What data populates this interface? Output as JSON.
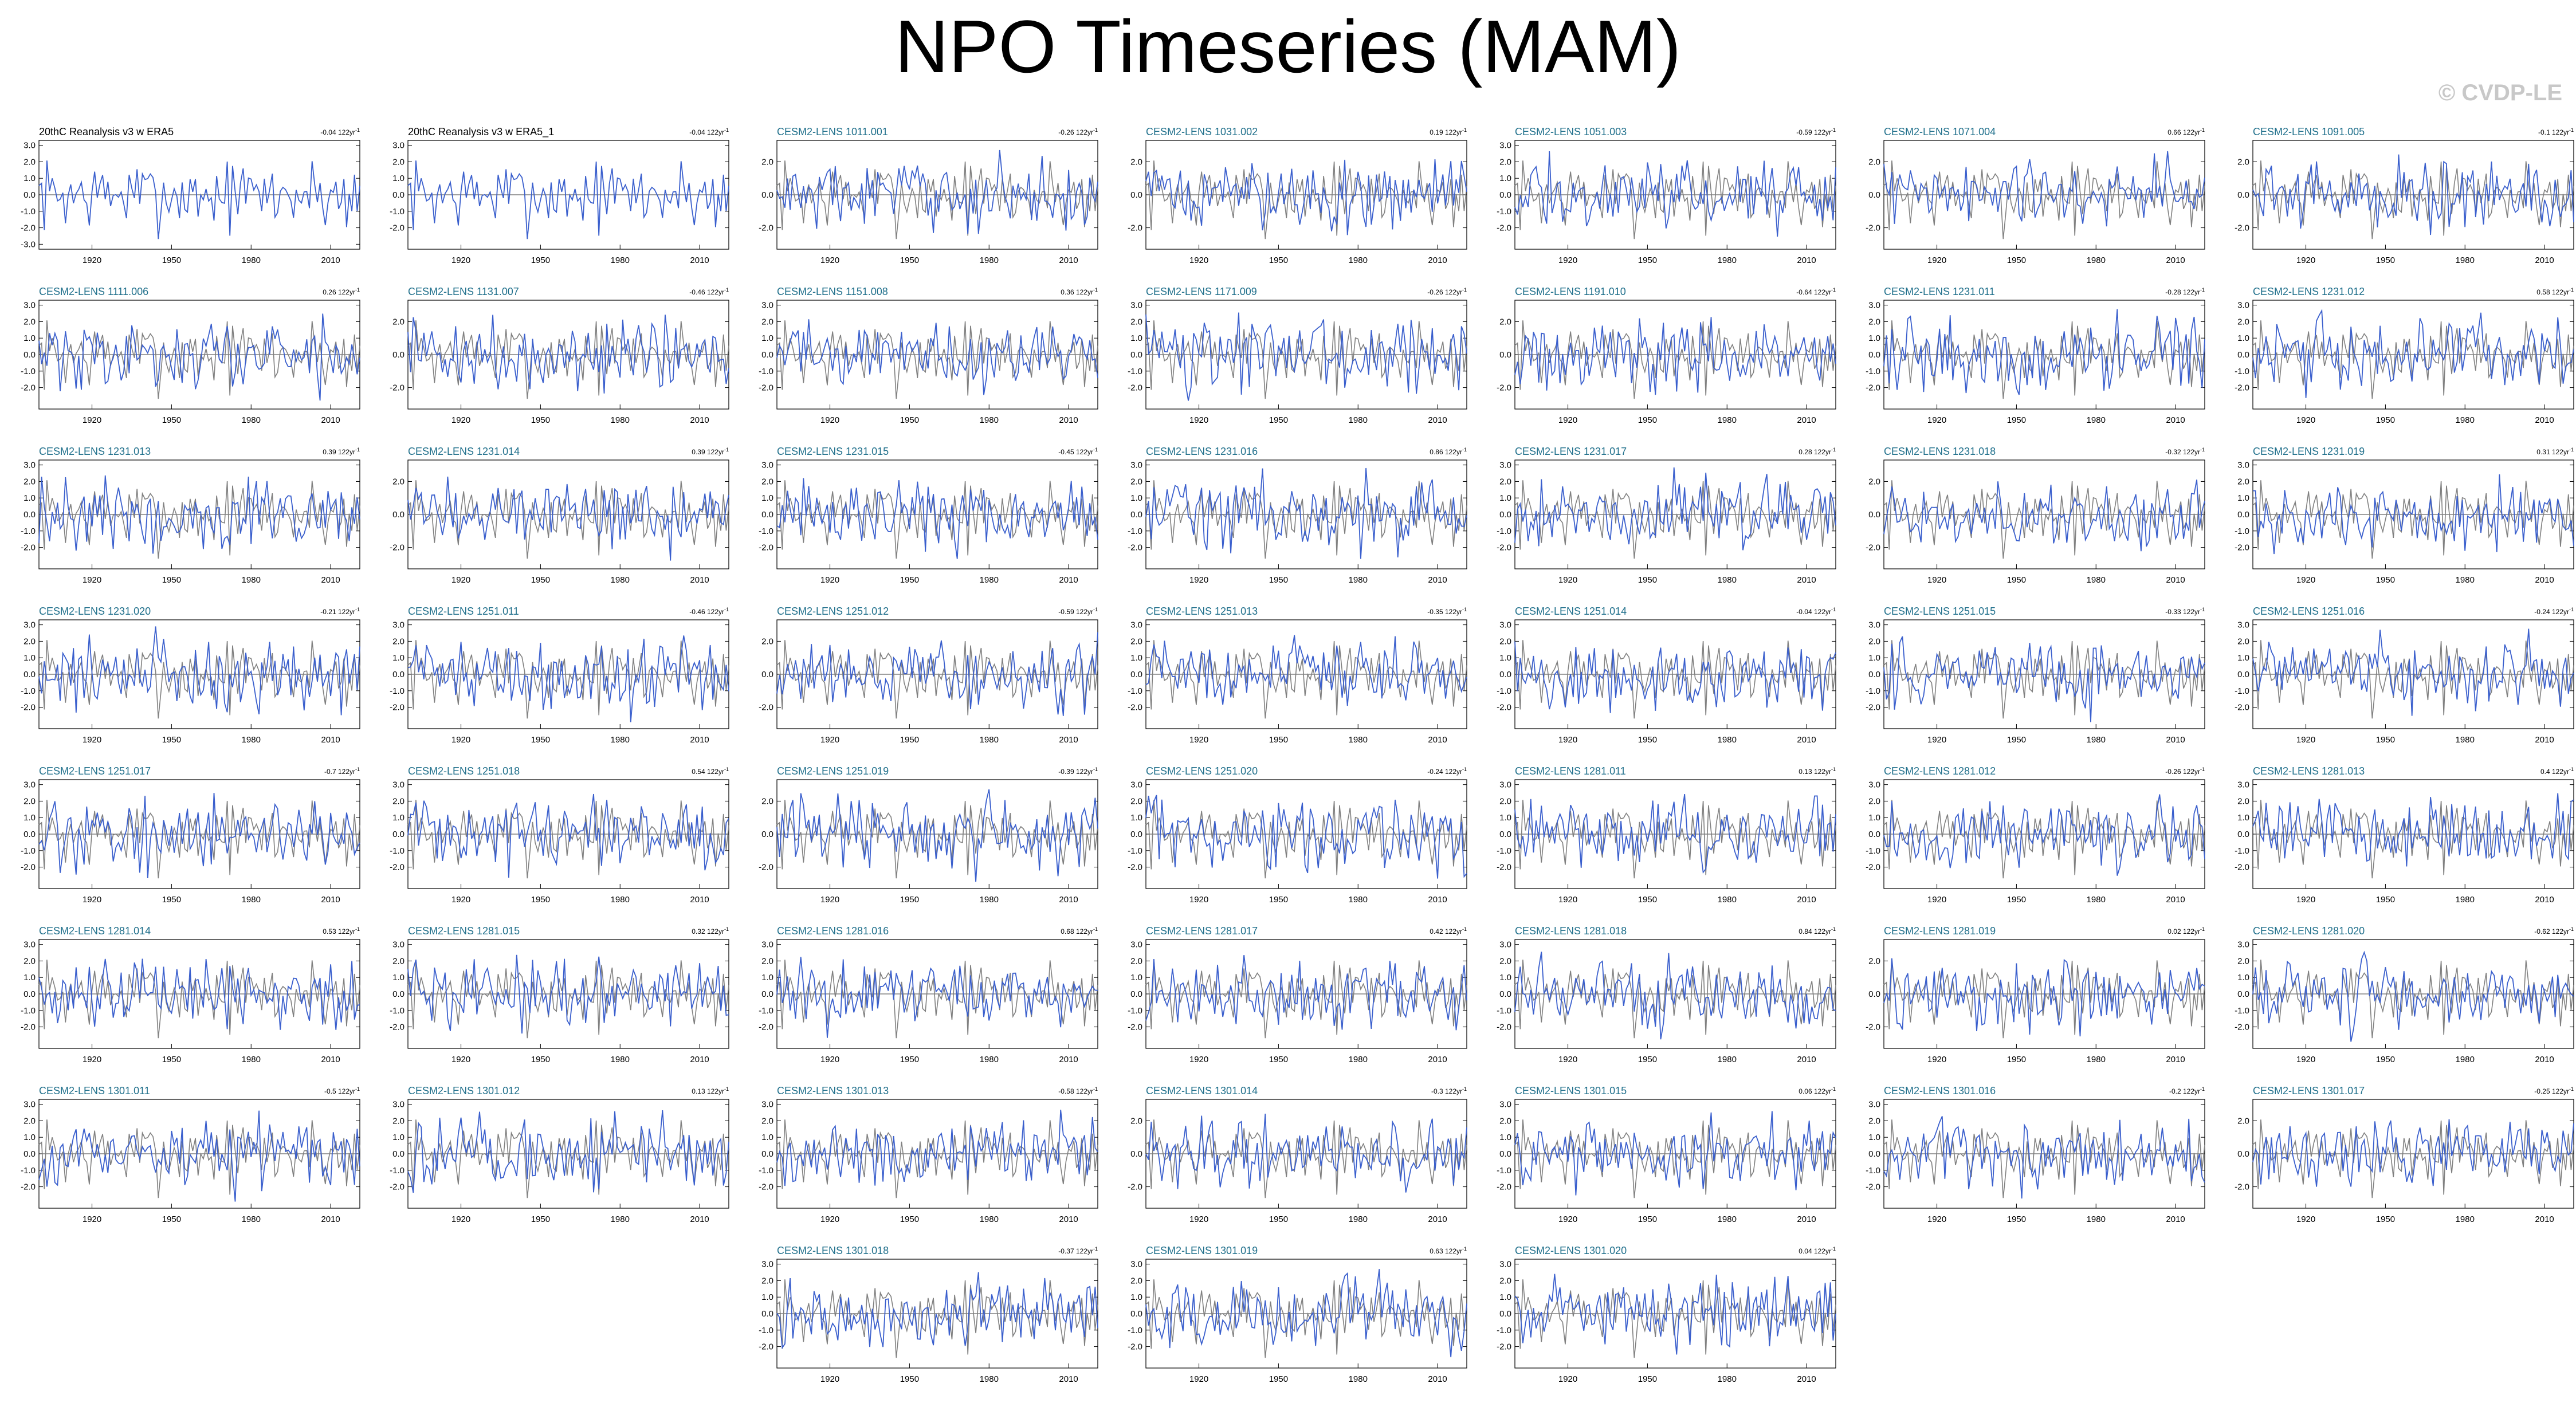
{
  "header": {
    "title": "NPO Timeseries (MAM)",
    "watermark": "© CVDP-LE"
  },
  "colors": {
    "member_line": "#3a5fcd",
    "observed_line": "#808080",
    "model_title": "#1f6f8b",
    "obs_title": "#000000"
  },
  "chart_data": {
    "type": "line",
    "x_ticks": [
      1920,
      1950,
      1980,
      2010
    ],
    "xlim": [
      1900,
      2021
    ],
    "trend_unit": "122yr",
    "panels": [
      {
        "title": "20thC Reanalysis v3 w ERA5",
        "trend": "-0.04",
        "kind": "obs",
        "yticks": [
          "3.0",
          "2.0",
          "1.0",
          "0.0",
          "-1.0",
          "-2.0",
          "-3.0"
        ]
      },
      {
        "title": "20thC Reanalysis v3 w ERA5_1",
        "trend": "-0.04",
        "kind": "obs",
        "yticks": [
          "3.0",
          "2.0",
          "1.0",
          "0.0",
          "-1.0",
          "-2.0"
        ]
      },
      {
        "title": "CESM2-LENS 1011.001",
        "trend": "-0.26",
        "kind": "model",
        "yticks": [
          "2.0",
          "0.0",
          "-2.0"
        ]
      },
      {
        "title": "CESM2-LENS 1031.002",
        "trend": "0.19",
        "kind": "model",
        "yticks": [
          "2.0",
          "0.0",
          "-2.0"
        ]
      },
      {
        "title": "CESM2-LENS 1051.003",
        "trend": "-0.59",
        "kind": "model",
        "yticks": [
          "3.0",
          "2.0",
          "1.0",
          "0.0",
          "-1.0",
          "-2.0"
        ]
      },
      {
        "title": "CESM2-LENS 1071.004",
        "trend": "0.66",
        "kind": "model",
        "yticks": [
          "2.0",
          "0.0",
          "-2.0"
        ]
      },
      {
        "title": "CESM2-LENS 1091.005",
        "trend": "-0.1",
        "kind": "model",
        "yticks": [
          "2.0",
          "0.0",
          "-2.0"
        ]
      },
      {
        "title": "CESM2-LENS 1111.006",
        "trend": "0.26",
        "kind": "model",
        "yticks": [
          "3.0",
          "2.0",
          "1.0",
          "0.0",
          "-1.0",
          "-2.0"
        ]
      },
      {
        "title": "CESM2-LENS 1131.007",
        "trend": "-0.46",
        "kind": "model",
        "yticks": [
          "2.0",
          "0.0",
          "-2.0"
        ]
      },
      {
        "title": "CESM2-LENS 1151.008",
        "trend": "0.36",
        "kind": "model",
        "yticks": [
          "3.0",
          "2.0",
          "1.0",
          "0.0",
          "-1.0",
          "-2.0"
        ]
      },
      {
        "title": "CESM2-LENS 1171.009",
        "trend": "-0.26",
        "kind": "model",
        "yticks": [
          "3.0",
          "2.0",
          "1.0",
          "0.0",
          "-1.0",
          "-2.0"
        ]
      },
      {
        "title": "CESM2-LENS 1191.010",
        "trend": "-0.64",
        "kind": "model",
        "yticks": [
          "2.0",
          "0.0",
          "-2.0"
        ]
      },
      {
        "title": "CESM2-LENS 1231.011",
        "trend": "-0.28",
        "kind": "model",
        "yticks": [
          "3.0",
          "2.0",
          "1.0",
          "0.0",
          "-1.0",
          "-2.0"
        ]
      },
      {
        "title": "CESM2-LENS 1231.012",
        "trend": "0.58",
        "kind": "model",
        "yticks": [
          "3.0",
          "2.0",
          "1.0",
          "0.0",
          "-1.0",
          "-2.0"
        ]
      },
      {
        "title": "CESM2-LENS 1231.013",
        "trend": "0.39",
        "kind": "model",
        "yticks": [
          "3.0",
          "2.0",
          "1.0",
          "0.0",
          "-1.0",
          "-2.0"
        ]
      },
      {
        "title": "CESM2-LENS 1231.014",
        "trend": "0.39",
        "kind": "model",
        "yticks": [
          "2.0",
          "0.0",
          "-2.0"
        ]
      },
      {
        "title": "CESM2-LENS 1231.015",
        "trend": "-0.45",
        "kind": "model",
        "yticks": [
          "3.0",
          "2.0",
          "1.0",
          "0.0",
          "-1.0",
          "-2.0"
        ]
      },
      {
        "title": "CESM2-LENS 1231.016",
        "trend": "0.86",
        "kind": "model",
        "yticks": [
          "3.0",
          "2.0",
          "1.0",
          "0.0",
          "-1.0",
          "-2.0"
        ]
      },
      {
        "title": "CESM2-LENS 1231.017",
        "trend": "0.28",
        "kind": "model",
        "yticks": [
          "3.0",
          "2.0",
          "1.0",
          "0.0",
          "-1.0",
          "-2.0"
        ]
      },
      {
        "title": "CESM2-LENS 1231.018",
        "trend": "-0.32",
        "kind": "model",
        "yticks": [
          "2.0",
          "0.0",
          "-2.0"
        ]
      },
      {
        "title": "CESM2-LENS 1231.019",
        "trend": "0.31",
        "kind": "model",
        "yticks": [
          "3.0",
          "2.0",
          "1.0",
          "0.0",
          "-1.0",
          "-2.0"
        ]
      },
      {
        "title": "CESM2-LENS 1231.020",
        "trend": "-0.21",
        "kind": "model",
        "yticks": [
          "3.0",
          "2.0",
          "1.0",
          "0.0",
          "-1.0",
          "-2.0"
        ]
      },
      {
        "title": "CESM2-LENS 1251.011",
        "trend": "-0.46",
        "kind": "model",
        "yticks": [
          "3.0",
          "2.0",
          "1.0",
          "0.0",
          "-1.0",
          "-2.0"
        ]
      },
      {
        "title": "CESM2-LENS 1251.012",
        "trend": "-0.59",
        "kind": "model",
        "yticks": [
          "2.0",
          "0.0",
          "-2.0"
        ]
      },
      {
        "title": "CESM2-LENS 1251.013",
        "trend": "-0.35",
        "kind": "model",
        "yticks": [
          "3.0",
          "2.0",
          "1.0",
          "0.0",
          "-1.0",
          "-2.0"
        ]
      },
      {
        "title": "CESM2-LENS 1251.014",
        "trend": "-0.04",
        "kind": "model",
        "yticks": [
          "3.0",
          "2.0",
          "1.0",
          "0.0",
          "-1.0",
          "-2.0"
        ]
      },
      {
        "title": "CESM2-LENS 1251.015",
        "trend": "-0.33",
        "kind": "model",
        "yticks": [
          "3.0",
          "2.0",
          "1.0",
          "0.0",
          "-1.0",
          "-2.0"
        ]
      },
      {
        "title": "CESM2-LENS 1251.016",
        "trend": "-0.24",
        "kind": "model",
        "yticks": [
          "3.0",
          "2.0",
          "1.0",
          "0.0",
          "-1.0",
          "-2.0"
        ]
      },
      {
        "title": "CESM2-LENS 1251.017",
        "trend": "-0.7",
        "kind": "model",
        "yticks": [
          "3.0",
          "2.0",
          "1.0",
          "0.0",
          "-1.0",
          "-2.0"
        ]
      },
      {
        "title": "CESM2-LENS 1251.018",
        "trend": "0.54",
        "kind": "model",
        "yticks": [
          "3.0",
          "2.0",
          "1.0",
          "0.0",
          "-1.0",
          "-2.0"
        ]
      },
      {
        "title": "CESM2-LENS 1251.019",
        "trend": "-0.39",
        "kind": "model",
        "yticks": [
          "2.0",
          "0.0",
          "-2.0"
        ]
      },
      {
        "title": "CESM2-LENS 1251.020",
        "trend": "-0.24",
        "kind": "model",
        "yticks": [
          "3.0",
          "2.0",
          "1.0",
          "0.0",
          "-1.0",
          "-2.0"
        ]
      },
      {
        "title": "CESM2-LENS 1281.011",
        "trend": "0.13",
        "kind": "model",
        "yticks": [
          "3.0",
          "2.0",
          "1.0",
          "0.0",
          "-1.0",
          "-2.0"
        ]
      },
      {
        "title": "CESM2-LENS 1281.012",
        "trend": "-0.26",
        "kind": "model",
        "yticks": [
          "3.0",
          "2.0",
          "1.0",
          "0.0",
          "-1.0",
          "-2.0"
        ]
      },
      {
        "title": "CESM2-LENS 1281.013",
        "trend": "0.4",
        "kind": "model",
        "yticks": [
          "3.0",
          "2.0",
          "1.0",
          "0.0",
          "-1.0",
          "-2.0"
        ]
      },
      {
        "title": "CESM2-LENS 1281.014",
        "trend": "0.53",
        "kind": "model",
        "yticks": [
          "3.0",
          "2.0",
          "1.0",
          "0.0",
          "-1.0",
          "-2.0"
        ]
      },
      {
        "title": "CESM2-LENS 1281.015",
        "trend": "0.32",
        "kind": "model",
        "yticks": [
          "3.0",
          "2.0",
          "1.0",
          "0.0",
          "-1.0",
          "-2.0"
        ]
      },
      {
        "title": "CESM2-LENS 1281.016",
        "trend": "0.68",
        "kind": "model",
        "yticks": [
          "3.0",
          "2.0",
          "1.0",
          "0.0",
          "-1.0",
          "-2.0"
        ]
      },
      {
        "title": "CESM2-LENS 1281.017",
        "trend": "0.42",
        "kind": "model",
        "yticks": [
          "3.0",
          "2.0",
          "1.0",
          "0.0",
          "-1.0",
          "-2.0"
        ]
      },
      {
        "title": "CESM2-LENS 1281.018",
        "trend": "0.84",
        "kind": "model",
        "yticks": [
          "3.0",
          "2.0",
          "1.0",
          "0.0",
          "-1.0",
          "-2.0"
        ]
      },
      {
        "title": "CESM2-LENS 1281.019",
        "trend": "0.02",
        "kind": "model",
        "yticks": [
          "2.0",
          "0.0",
          "-2.0"
        ]
      },
      {
        "title": "CESM2-LENS 1281.020",
        "trend": "-0.62",
        "kind": "model",
        "yticks": [
          "3.0",
          "2.0",
          "1.0",
          "0.0",
          "-1.0",
          "-2.0"
        ]
      },
      {
        "title": "CESM2-LENS 1301.011",
        "trend": "-0.5",
        "kind": "model",
        "yticks": [
          "3.0",
          "2.0",
          "1.0",
          "0.0",
          "-1.0",
          "-2.0"
        ]
      },
      {
        "title": "CESM2-LENS 1301.012",
        "trend": "0.13",
        "kind": "model",
        "yticks": [
          "3.0",
          "2.0",
          "1.0",
          "0.0",
          "-1.0",
          "-2.0"
        ]
      },
      {
        "title": "CESM2-LENS 1301.013",
        "trend": "-0.58",
        "kind": "model",
        "yticks": [
          "3.0",
          "2.0",
          "1.0",
          "0.0",
          "-1.0",
          "-2.0"
        ]
      },
      {
        "title": "CESM2-LENS 1301.014",
        "trend": "-0.3",
        "kind": "model",
        "yticks": [
          "2.0",
          "0.0",
          "-2.0"
        ]
      },
      {
        "title": "CESM2-LENS 1301.015",
        "trend": "0.06",
        "kind": "model",
        "yticks": [
          "3.0",
          "2.0",
          "1.0",
          "0.0",
          "-1.0",
          "-2.0"
        ]
      },
      {
        "title": "CESM2-LENS 1301.016",
        "trend": "-0.2",
        "kind": "model",
        "yticks": [
          "3.0",
          "2.0",
          "1.0",
          "0.0",
          "-1.0",
          "-2.0"
        ]
      },
      {
        "title": "CESM2-LENS 1301.017",
        "trend": "-0.25",
        "kind": "model",
        "yticks": [
          "2.0",
          "0.0",
          "-2.0"
        ]
      },
      {
        "title": "CESM2-LENS 1301.018",
        "trend": "-0.37",
        "kind": "model",
        "yticks": [
          "3.0",
          "2.0",
          "1.0",
          "0.0",
          "-1.0",
          "-2.0"
        ]
      },
      {
        "title": "CESM2-LENS 1301.019",
        "trend": "0.63",
        "kind": "model",
        "yticks": [
          "3.0",
          "2.0",
          "1.0",
          "0.0",
          "-1.0",
          "-2.0"
        ]
      },
      {
        "title": "CESM2-LENS 1301.020",
        "trend": "0.04",
        "kind": "model",
        "yticks": [
          "3.0",
          "2.0",
          "1.0",
          "0.0",
          "-1.0",
          "-2.0"
        ]
      }
    ]
  }
}
